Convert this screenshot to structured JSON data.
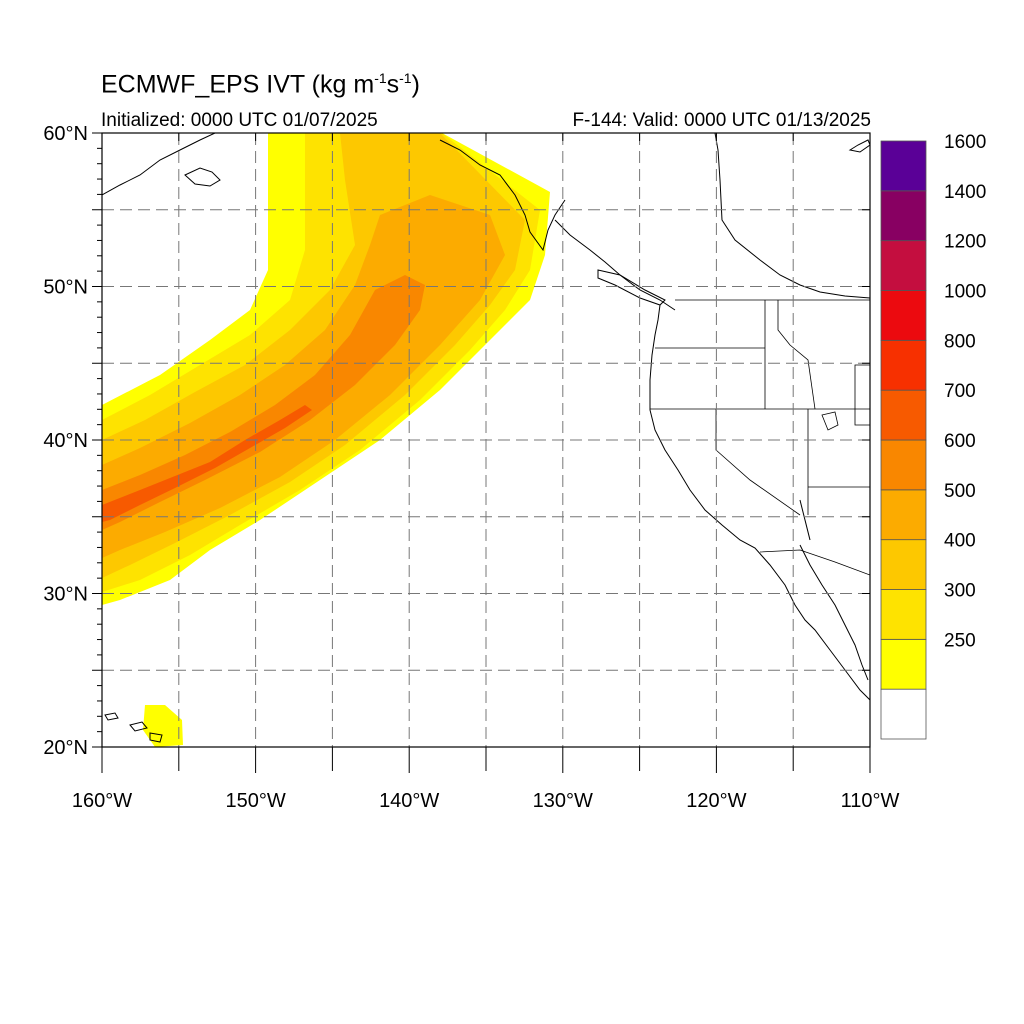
{
  "title": {
    "main": "ECMWF_EPS IVT (kg m",
    "exp1": "-1",
    "mid": "s",
    "exp2": "-1",
    "end": ")"
  },
  "init_label": "Initialized: 0000 UTC 01/07/2025",
  "valid_label": "F-144: Valid: 0000 UTC 01/13/2025",
  "map": {
    "lon_range": [
      -160,
      -110
    ],
    "lat_range": [
      20,
      60
    ],
    "lon_ticks": [
      {
        "lon": -160,
        "label": "160°W"
      },
      {
        "lon": -150,
        "label": "150°W"
      },
      {
        "lon": -140,
        "label": "140°W"
      },
      {
        "lon": -130,
        "label": "130°W"
      },
      {
        "lon": -120,
        "label": "120°W"
      },
      {
        "lon": -110,
        "label": "110°W"
      }
    ],
    "lat_ticks": [
      {
        "lat": 20,
        "label": "20°N"
      },
      {
        "lat": 30,
        "label": "30°N"
      },
      {
        "lat": 40,
        "label": "40°N"
      },
      {
        "lat": 50,
        "label": "50°N"
      },
      {
        "lat": 60,
        "label": "60°N"
      }
    ],
    "gridlines": "dashed every 5°"
  },
  "colorbar": {
    "levels": [
      {
        "value": "",
        "color": "#ffffff"
      },
      {
        "value": "250",
        "color": "#ffff00"
      },
      {
        "value": "300",
        "color": "#fee300"
      },
      {
        "value": "400",
        "color": "#fdc800"
      },
      {
        "value": "500",
        "color": "#fcab00"
      },
      {
        "value": "600",
        "color": "#f98700"
      },
      {
        "value": "700",
        "color": "#f75a00"
      },
      {
        "value": "800",
        "color": "#f73000"
      },
      {
        "value": "1000",
        "color": "#ec0a0f"
      },
      {
        "value": "1200",
        "color": "#c40e3f"
      },
      {
        "value": "1400",
        "color": "#880062"
      },
      {
        "value": "1600",
        "color": "#5a0097"
      }
    ]
  },
  "ivt_field": {
    "units": "kg m-1 s-1",
    "river_core_lon_lat": [
      [
        -160,
        35.5
      ],
      [
        -155,
        37.5
      ],
      [
        -150,
        40
      ],
      [
        -145,
        43.5
      ],
      [
        -141,
        48
      ],
      [
        -139,
        51
      ]
    ],
    "max_level": "700"
  }
}
